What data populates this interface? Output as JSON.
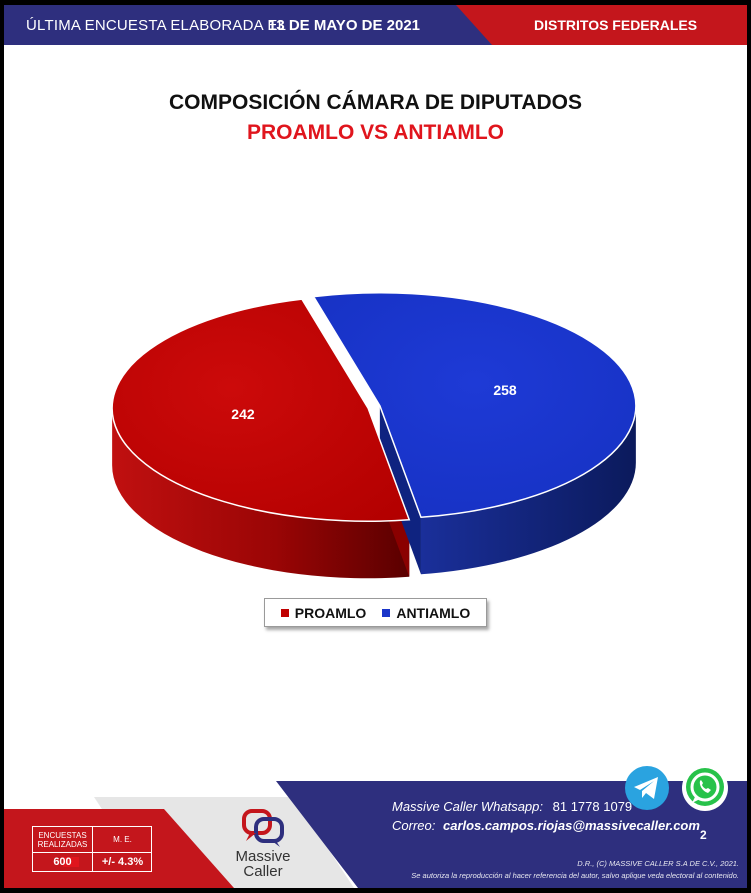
{
  "header": {
    "prefix": "ÚLTIMA ENCUESTA ELABORADA EL",
    "date": "13 DE MAYO DE 2021",
    "right_label": "DISTRITOS FEDERALES"
  },
  "chart_data": {
    "type": "pie",
    "title": "COMPOSICIÓN CÁMARA DE DIPUTADOS",
    "subtitle": "PROAMLO VS ANTIAMLO",
    "categories": [
      "PROAMLO",
      "ANTIAMLO"
    ],
    "values": [
      242,
      258
    ],
    "colors": [
      "#c00000",
      "#1a35c9"
    ],
    "data_labels": [
      "242",
      "258"
    ],
    "legend_position": "bottom",
    "style": "3d-exploded"
  },
  "footer": {
    "stats": {
      "surveys_label": "ENCUESTAS REALIZADAS",
      "surveys_value": "600",
      "margin_label": "M. E.",
      "margin_value": "+/- 4.3%"
    },
    "logo_name_line1": "Massive",
    "logo_name_line2": "Caller",
    "whatsapp_label": "Massive Caller Whatsapp:",
    "whatsapp_number": "81 1778 1079",
    "email_label": "Correo:",
    "email": "carlos.campos.riojas@massivecaller.com",
    "page_number": "2",
    "rights_line1": "D.R., (C) MASSIVE CALLER S.A DE C.V., 2021.",
    "rights_line2": "Se autoriza la reproducción al hacer referencia del autor, salvo aplique veda electoral al contenido.",
    "icons": [
      "telegram-icon",
      "whatsapp-icon"
    ]
  }
}
